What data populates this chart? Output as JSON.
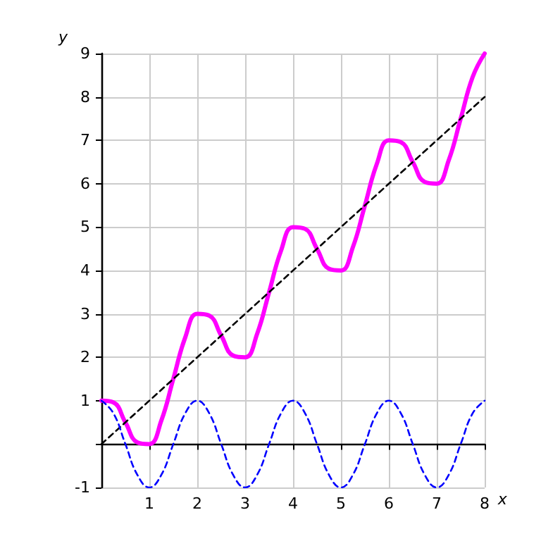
{
  "chart_data": {
    "type": "line",
    "xlabel": "x",
    "ylabel": "y",
    "xlim": [
      0,
      8
    ],
    "ylim": [
      -1,
      9
    ],
    "xticks": [
      {
        "value": 0,
        "label": null
      },
      1,
      2,
      3,
      4,
      5,
      6,
      7,
      8
    ],
    "yticks": [
      -1,
      {
        "value": 0,
        "label": null
      },
      1,
      2,
      3,
      4,
      5,
      6,
      7,
      8,
      9
    ],
    "grid": true,
    "marker": "none",
    "series": [
      {
        "color": "#ff00ff",
        "line_style": "solid",
        "x": [
          0,
          0.25,
          0.5,
          0.75,
          1,
          1.25,
          1.5,
          1.75,
          2,
          2.25,
          2.5,
          2.75,
          3,
          3.25,
          3.5,
          3.75,
          4,
          4.25,
          4.5,
          4.75,
          5,
          5.25,
          5.5,
          5.75,
          6,
          6.25,
          6.5,
          6.75,
          7,
          7.25,
          7.5,
          7.75,
          8
        ],
        "values": [
          1,
          0.96,
          0.5,
          0.04,
          0,
          0.54,
          1.5,
          2.46,
          3,
          2.96,
          2.5,
          2.04,
          2,
          2.54,
          3.5,
          4.46,
          5,
          4.96,
          4.5,
          4.04,
          4,
          4.54,
          5.5,
          6.46,
          7,
          6.96,
          6.5,
          6.04,
          6,
          6.54,
          7.5,
          8.46,
          9
        ]
      },
      {
        "color": "#000000",
        "line_style": "dashed",
        "x": [
          0,
          8
        ],
        "values": [
          0,
          8
        ]
      },
      {
        "color": "#0000ff",
        "line_style": "dashed",
        "x": [
          0,
          0.25,
          0.5,
          0.75,
          1,
          1.25,
          1.5,
          1.75,
          2,
          2.25,
          2.5,
          2.75,
          3,
          3.25,
          3.5,
          3.75,
          4,
          4.25,
          4.5,
          4.75,
          5,
          5.25,
          5.5,
          5.75,
          6,
          6.25,
          6.5,
          6.75,
          7,
          7.25,
          7.5,
          7.75,
          8
        ],
        "values": [
          1,
          0.71,
          0,
          -0.71,
          -1,
          -0.71,
          0,
          0.71,
          1,
          0.71,
          0,
          -0.71,
          -1,
          -0.71,
          0,
          0.71,
          1,
          0.71,
          0,
          -0.71,
          -1,
          -0.71,
          0,
          0.71,
          1,
          0.71,
          0,
          -0.71,
          -1,
          -0.71,
          0,
          0.71,
          1
        ]
      }
    ]
  }
}
